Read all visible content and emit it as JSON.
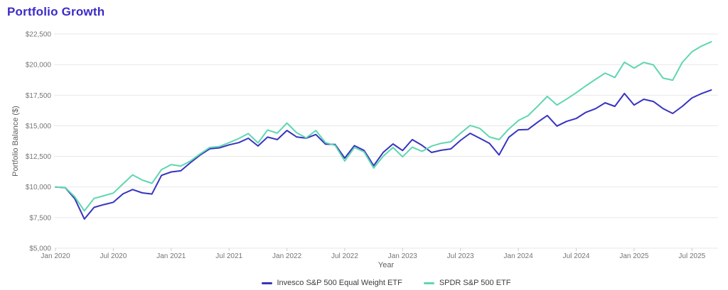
{
  "colors": {
    "title": "#3a2bc8",
    "grid": "#e7e7e7",
    "tick_mark": "#cccccc",
    "tick_label": "#757575",
    "axis_title": "#5f5f5f",
    "invesco_line": "#3733c0",
    "spdr_line": "#5fd6b2"
  },
  "chart_data": {
    "type": "line",
    "title": "Portfolio Growth",
    "xlabel": "Year",
    "ylabel": "Portfolio Balance ($)",
    "grid": true,
    "legend_position": "bottom",
    "x_frequency": "monthly",
    "x_start": "Jan 2020",
    "x_end": "Sep 2025",
    "ylim": [
      5000,
      22500
    ],
    "y_ticks": [
      {
        "value": 5000,
        "label": "$5,000"
      },
      {
        "value": 7500,
        "label": "$7,500"
      },
      {
        "value": 10000,
        "label": "$10,000"
      },
      {
        "value": 12500,
        "label": "$12,500"
      },
      {
        "value": 15000,
        "label": "$15,000"
      },
      {
        "value": 17500,
        "label": "$17,500"
      },
      {
        "value": 20000,
        "label": "$20,000"
      },
      {
        "value": 22500,
        "label": "$22,500"
      }
    ],
    "x_ticks": [
      {
        "month_index": 0,
        "label": "Jan 2020"
      },
      {
        "month_index": 6,
        "label": "Jul 2020"
      },
      {
        "month_index": 12,
        "label": "Jan 2021"
      },
      {
        "month_index": 18,
        "label": "Jul 2021"
      },
      {
        "month_index": 24,
        "label": "Jan 2022"
      },
      {
        "month_index": 30,
        "label": "Jul 2022"
      },
      {
        "month_index": 36,
        "label": "Jan 2023"
      },
      {
        "month_index": 42,
        "label": "Jul 2023"
      },
      {
        "month_index": 48,
        "label": "Jan 2024"
      },
      {
        "month_index": 54,
        "label": "Jul 2024"
      },
      {
        "month_index": 60,
        "label": "Jan 2025"
      },
      {
        "month_index": 66,
        "label": "Jul 2025"
      }
    ],
    "series": [
      {
        "name": "Invesco S&P 500 Equal Weight ETF",
        "color": "#3733c0",
        "values": [
          10000,
          9950,
          9050,
          7380,
          8330,
          8560,
          8750,
          9440,
          9790,
          9520,
          9430,
          10950,
          11230,
          11320,
          11990,
          12610,
          13120,
          13200,
          13440,
          13620,
          13980,
          13350,
          14080,
          13870,
          14620,
          14090,
          13990,
          14290,
          13500,
          13470,
          12360,
          13380,
          12990,
          11740,
          12840,
          13520,
          12980,
          13870,
          13410,
          12820,
          13000,
          13110,
          13810,
          14390,
          13980,
          13570,
          12620,
          14060,
          14670,
          14700,
          15300,
          15840,
          14980,
          15360,
          15600,
          16100,
          16400,
          16880,
          16590,
          17640,
          16700,
          17170,
          16990,
          16410,
          16010,
          16590,
          17280,
          17640,
          17930
        ]
      },
      {
        "name": "SPDR S&P 500 ETF",
        "color": "#5fd6b2",
        "values": [
          10000,
          9960,
          9200,
          8050,
          9070,
          9280,
          9500,
          10250,
          10990,
          10570,
          10300,
          11420,
          11830,
          11710,
          12120,
          12700,
          13230,
          13310,
          13620,
          13950,
          14370,
          13600,
          14660,
          14400,
          15230,
          14440,
          14010,
          14620,
          13620,
          13400,
          12120,
          13230,
          12870,
          11550,
          12530,
          13230,
          12470,
          13250,
          12910,
          13340,
          13570,
          13690,
          14390,
          15030,
          14790,
          14090,
          13870,
          14730,
          15430,
          15830,
          16600,
          17400,
          16700,
          17180,
          17700,
          18270,
          18800,
          19310,
          18950,
          20200,
          19720,
          20180,
          19980,
          18900,
          18730,
          20180,
          21050,
          21520,
          21870
        ]
      }
    ]
  }
}
